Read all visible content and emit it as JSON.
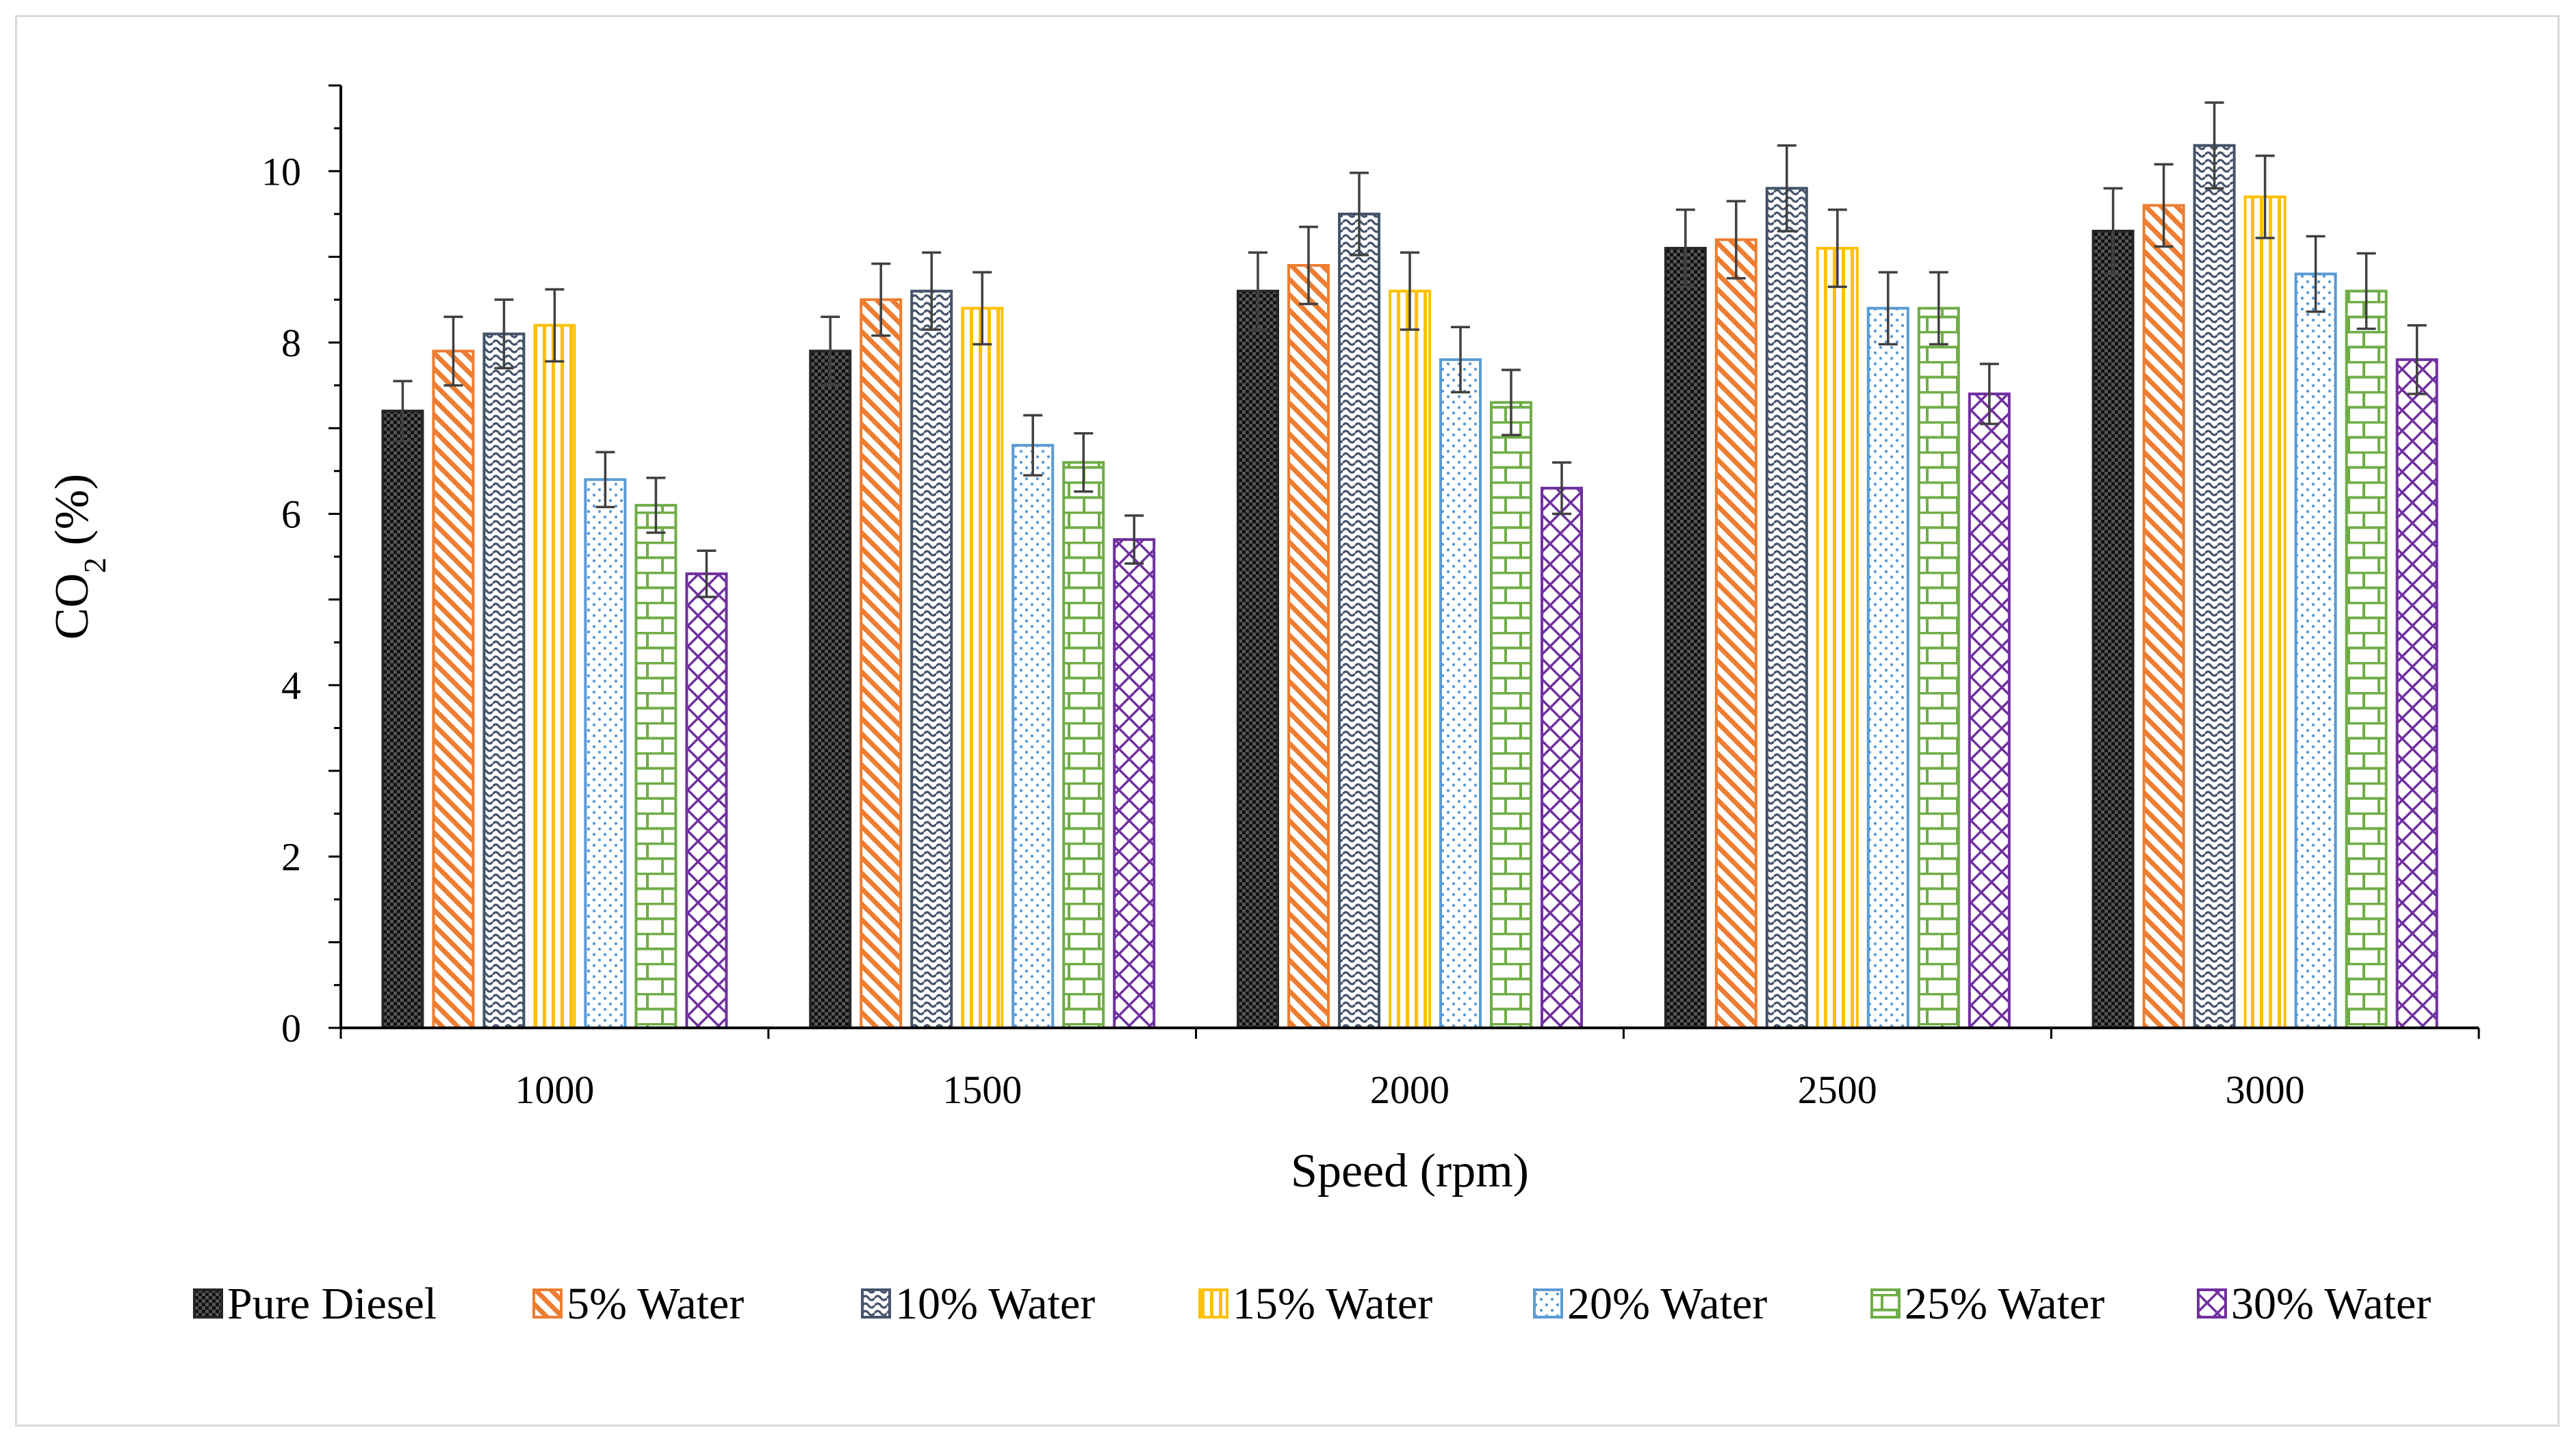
{
  "chart_data": {
    "type": "bar",
    "xlabel": "Speed (rpm)",
    "ylabel": {
      "main": "CO",
      "subscript": "2",
      "suffix": " (%)"
    },
    "categories": [
      "1000",
      "1500",
      "2000",
      "2500",
      "3000"
    ],
    "ylim": [
      0,
      11
    ],
    "yticks": [
      0,
      2,
      4,
      6,
      8,
      10
    ],
    "grid": false,
    "legend_position": "bottom",
    "series": [
      {
        "name": "Pure Diesel",
        "color": "#262626",
        "pattern": "checker",
        "values": [
          7.2,
          7.9,
          8.6,
          9.1,
          9.3
        ],
        "errors": [
          0.35,
          0.4,
          0.45,
          0.45,
          0.5
        ]
      },
      {
        "name": "5%  Water",
        "color": "#ED7D31",
        "pattern": "diagonal",
        "values": [
          7.9,
          8.5,
          8.9,
          9.2,
          9.6
        ],
        "errors": [
          0.4,
          0.42,
          0.45,
          0.45,
          0.48
        ]
      },
      {
        "name": "10% Water",
        "color": "#44546A",
        "pattern": "wave",
        "values": [
          8.1,
          8.6,
          9.5,
          9.8,
          10.3
        ],
        "errors": [
          0.4,
          0.45,
          0.48,
          0.5,
          0.5
        ]
      },
      {
        "name": "15% Water",
        "color": "#FFC000",
        "pattern": "vertical",
        "values": [
          8.2,
          8.4,
          8.6,
          9.1,
          9.7
        ],
        "errors": [
          0.42,
          0.42,
          0.45,
          0.45,
          0.48
        ]
      },
      {
        "name": "20% Water",
        "color": "#5B9BD5",
        "pattern": "dots",
        "values": [
          6.4,
          6.8,
          7.8,
          8.4,
          8.8
        ],
        "errors": [
          0.32,
          0.35,
          0.38,
          0.42,
          0.44
        ]
      },
      {
        "name": "25% Water",
        "color": "#70AD47",
        "pattern": "brick",
        "values": [
          6.1,
          6.6,
          7.3,
          8.4,
          8.6
        ],
        "errors": [
          0.32,
          0.34,
          0.38,
          0.42,
          0.44
        ]
      },
      {
        "name": "30% Water",
        "color": "#7030A0",
        "pattern": "diamond",
        "values": [
          5.3,
          5.7,
          6.3,
          7.4,
          7.8
        ],
        "errors": [
          0.27,
          0.28,
          0.3,
          0.35,
          0.4
        ]
      }
    ]
  }
}
